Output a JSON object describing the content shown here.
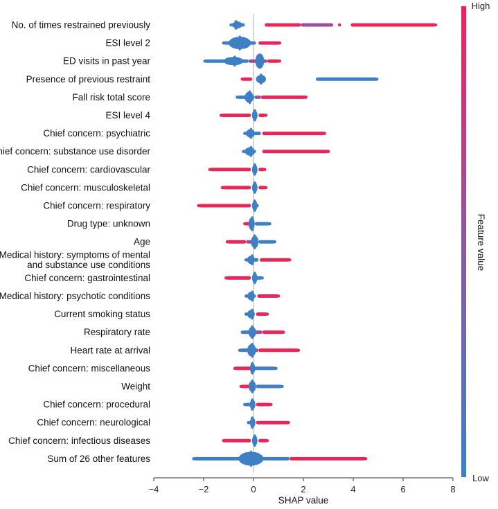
{
  "chart_data": {
    "type": "scatter",
    "subtype": "shap-beeswarm",
    "xlabel": "SHAP value",
    "xlim": [
      -4,
      8
    ],
    "xticks": [
      -4,
      -2,
      0,
      2,
      4,
      6,
      8
    ],
    "colorbar": {
      "label": "Feature value",
      "high_label": "High",
      "low_label": "Low",
      "low_color": "#3f7fc4",
      "high_color": "#e8265a"
    },
    "features": [
      {
        "name": "No. of times restrained previously",
        "lines": [
          "No. of times restrained previously"
        ],
        "min": -0.9,
        "max": 7.3,
        "center": -0.7,
        "core": [
          -0.85,
          -0.45
        ],
        "thick": 10,
        "low": [
          [
            -0.9,
            -0.35
          ]
        ],
        "high": [
          [
            0.45,
            1.9
          ],
          [
            3.9,
            7.3
          ]
        ],
        "mixed": [
          [
            1.9,
            3.2
          ]
        ],
        "dots": [
          {
            "x": 3.45,
            "c": "high"
          }
        ]
      },
      {
        "name": "ESI level 2",
        "lines": [
          "ESI level 2"
        ],
        "min": -1.2,
        "max": 1.05,
        "center": -0.55,
        "core": [
          -1.0,
          -0.1
        ],
        "thick": 18,
        "low": [
          [
            -1.2,
            0.1
          ]
        ],
        "high": [
          [
            0.2,
            1.05
          ]
        ],
        "mixed": []
      },
      {
        "name": "ED visits in past year",
        "lines": [
          "ED visits in past year"
        ],
        "min": -1.95,
        "max": 1.05,
        "center": -0.75,
        "core": [
          -1.2,
          -0.4
        ],
        "thick": 12,
        "low": [
          [
            -1.95,
            -0.2
          ]
        ],
        "high": [
          [
            0.55,
            1.05
          ]
        ],
        "mixed": [
          [
            -0.2,
            0.55
          ]
        ],
        "blob": {
          "x": 0.25,
          "w": 0.35,
          "h": 22
        }
      },
      {
        "name": "Presence of previous restraint",
        "lines": [
          "Presence of previous restraint"
        ],
        "min": -0.45,
        "max": 4.95,
        "center": 0.3,
        "core": [
          0.1,
          0.5
        ],
        "thick": 12,
        "low": [
          [
            0.1,
            0.5
          ],
          [
            2.5,
            4.95
          ]
        ],
        "high": [
          [
            -0.45,
            -0.05
          ]
        ],
        "mixed": []
      },
      {
        "name": "Fall risk total score",
        "lines": [
          "Fall risk total score"
        ],
        "min": -0.65,
        "max": 2.1,
        "center": -0.15,
        "core": [
          -0.35,
          0.0
        ],
        "thick": 16,
        "low": [
          [
            -0.65,
            0.05
          ]
        ],
        "high": [
          [
            0.3,
            2.1
          ]
        ],
        "mixed": [
          [
            0.05,
            0.3
          ]
        ]
      },
      {
        "name": "ESI level 4",
        "lines": [
          "ESI level 4"
        ],
        "min": -1.3,
        "max": 0.5,
        "center": 0.05,
        "core": [
          -0.05,
          0.15
        ],
        "thick": 14,
        "low": [
          [
            -0.05,
            0.15
          ]
        ],
        "high": [
          [
            -1.3,
            -0.1
          ],
          [
            0.2,
            0.5
          ]
        ],
        "mixed": []
      },
      {
        "name": "Chief concern: psychiatric",
        "lines": [
          "Chief concern: psychiatric"
        ],
        "min": -0.35,
        "max": 2.85,
        "center": -0.1,
        "core": [
          -0.3,
          0.05
        ],
        "thick": 12,
        "low": [
          [
            -0.35,
            0.3
          ]
        ],
        "high": [
          [
            0.35,
            2.85
          ]
        ],
        "mixed": []
      },
      {
        "name": "Chief concern: substance use disorder",
        "lines": [
          "Chief concern: substance use disorder"
        ],
        "min": -0.4,
        "max": 3.0,
        "center": -0.1,
        "core": [
          -0.35,
          0.05
        ],
        "thick": 12,
        "low": [
          [
            -0.4,
            0.1
          ]
        ],
        "high": [
          [
            0.35,
            3.0
          ]
        ],
        "mixed": []
      },
      {
        "name": "Chief concern: cardiovascular",
        "lines": [
          "Chief concern: cardiovascular"
        ],
        "min": -1.75,
        "max": 0.45,
        "center": 0.05,
        "core": [
          -0.02,
          0.12
        ],
        "thick": 14,
        "low": [
          [
            -0.02,
            0.12
          ]
        ],
        "high": [
          [
            -1.75,
            -0.1
          ],
          [
            0.2,
            0.45
          ]
        ],
        "mixed": []
      },
      {
        "name": "Chief concern: musculoskeletal",
        "lines": [
          "Chief concern: musculoskeletal"
        ],
        "min": -1.25,
        "max": 0.5,
        "center": 0.05,
        "core": [
          -0.02,
          0.12
        ],
        "thick": 14,
        "low": [
          [
            -0.02,
            0.12
          ]
        ],
        "high": [
          [
            -1.25,
            -0.1
          ],
          [
            0.2,
            0.5
          ]
        ],
        "mixed": []
      },
      {
        "name": "Chief concern: respiratory",
        "lines": [
          "Chief concern: respiratory"
        ],
        "min": -2.2,
        "max": 0.15,
        "center": 0.05,
        "core": [
          -0.02,
          0.12
        ],
        "thick": 14,
        "low": [
          [
            -0.02,
            0.15
          ]
        ],
        "high": [
          [
            -2.2,
            -0.1
          ]
        ],
        "mixed": []
      },
      {
        "name": "Drug type: unknown",
        "lines": [
          "Drug type: unknown"
        ],
        "min": -0.35,
        "max": 0.65,
        "center": -0.05,
        "core": [
          -0.2,
          0.05
        ],
        "thick": 18,
        "low": [
          [
            0.05,
            0.65
          ]
        ],
        "high": [
          [
            -0.35,
            0.05
          ]
        ],
        "mixed": []
      },
      {
        "name": "Age",
        "lines": [
          "Age"
        ],
        "min": -1.05,
        "max": 0.85,
        "center": 0.05,
        "core": [
          -0.1,
          0.2
        ],
        "thick": 18,
        "low": [
          [
            0.2,
            0.85
          ]
        ],
        "high": [
          [
            -1.05,
            -0.3
          ]
        ],
        "mixed": [
          [
            -0.3,
            0.2
          ]
        ]
      },
      {
        "name": "Medical history: symptoms of mental and substance use conditions",
        "lines": [
          "Medical history: symptoms of mental",
          "and substance use conditions"
        ],
        "min": -0.3,
        "max": 1.45,
        "center": -0.05,
        "core": [
          -0.25,
          0.05
        ],
        "thick": 12,
        "low": [
          [
            -0.3,
            0.2
          ]
        ],
        "high": [
          [
            0.25,
            1.45
          ]
        ],
        "mixed": []
      },
      {
        "name": "Chief concern: gastrointestinal",
        "lines": [
          "Chief concern: gastrointestinal"
        ],
        "min": -1.1,
        "max": 0.35,
        "center": 0.05,
        "core": [
          -0.02,
          0.12
        ],
        "thick": 14,
        "low": [
          [
            -0.02,
            0.35
          ]
        ],
        "high": [
          [
            -1.1,
            -0.1
          ]
        ],
        "mixed": []
      },
      {
        "name": "Medical history: psychotic conditions",
        "lines": [
          "Medical history: psychotic conditions"
        ],
        "min": -0.3,
        "max": 1.0,
        "center": -0.05,
        "core": [
          -0.25,
          0.05
        ],
        "thick": 12,
        "low": [
          [
            -0.3,
            0.1
          ]
        ],
        "high": [
          [
            0.15,
            1.0
          ]
        ],
        "mixed": []
      },
      {
        "name": "Current smoking status",
        "lines": [
          "Current smoking status"
        ],
        "min": -0.3,
        "max": 0.55,
        "center": -0.05,
        "core": [
          -0.25,
          0.05
        ],
        "thick": 12,
        "low": [
          [
            -0.3,
            0.05
          ]
        ],
        "high": [
          [
            0.1,
            0.55
          ]
        ],
        "mixed": []
      },
      {
        "name": "Respiratory rate",
        "lines": [
          "Respiratory rate"
        ],
        "min": -0.45,
        "max": 1.2,
        "center": -0.05,
        "core": [
          -0.2,
          0.1
        ],
        "thick": 16,
        "low": [
          [
            -0.45,
            -0.05
          ]
        ],
        "high": [
          [
            0.35,
            1.2
          ]
        ],
        "mixed": [
          [
            -0.05,
            0.35
          ]
        ]
      },
      {
        "name": "Heart rate at arrival",
        "lines": [
          "Heart rate at arrival"
        ],
        "min": -0.55,
        "max": 1.8,
        "center": -0.05,
        "core": [
          -0.25,
          0.1
        ],
        "thick": 18,
        "low": [
          [
            -0.55,
            -0.1
          ]
        ],
        "high": [
          [
            0.2,
            1.8
          ]
        ],
        "mixed": [
          [
            -0.1,
            0.2
          ]
        ]
      },
      {
        "name": "Chief concern: miscellaneous",
        "lines": [
          "Chief concern: miscellaneous"
        ],
        "min": -0.75,
        "max": 0.9,
        "center": -0.05,
        "core": [
          -0.12,
          0.05
        ],
        "thick": 14,
        "low": [
          [
            0.0,
            0.9
          ]
        ],
        "high": [
          [
            -0.75,
            -0.05
          ]
        ],
        "mixed": []
      },
      {
        "name": "Weight",
        "lines": [
          "Weight"
        ],
        "min": -0.5,
        "max": 1.15,
        "center": -0.05,
        "core": [
          -0.2,
          0.1
        ],
        "thick": 16,
        "low": [
          [
            0.1,
            1.15
          ]
        ],
        "high": [
          [
            -0.5,
            -0.15
          ]
        ],
        "mixed": [
          [
            -0.15,
            0.1
          ]
        ]
      },
      {
        "name": "Chief concern: procedural",
        "lines": [
          "Chief concern: procedural"
        ],
        "min": -0.35,
        "max": 0.7,
        "center": -0.05,
        "core": [
          -0.12,
          0.05
        ],
        "thick": 14,
        "low": [
          [
            -0.35,
            0.05
          ]
        ],
        "high": [
          [
            0.1,
            0.7
          ]
        ],
        "mixed": []
      },
      {
        "name": "Chief concern: neurological",
        "lines": [
          "Chief concern: neurological"
        ],
        "min": -0.2,
        "max": 1.4,
        "center": -0.05,
        "core": [
          -0.12,
          0.05
        ],
        "thick": 14,
        "low": [
          [
            -0.2,
            0.05
          ]
        ],
        "high": [
          [
            0.1,
            1.4
          ]
        ],
        "mixed": []
      },
      {
        "name": "Chief concern: infectious diseases",
        "lines": [
          "Chief concern: infectious diseases"
        ],
        "min": -1.2,
        "max": 0.55,
        "center": 0.05,
        "core": [
          -0.02,
          0.12
        ],
        "thick": 14,
        "low": [
          [
            -0.02,
            0.12
          ]
        ],
        "high": [
          [
            -1.2,
            -0.1
          ],
          [
            0.2,
            0.55
          ]
        ],
        "mixed": []
      },
      {
        "name": "Sum of 26 other features",
        "lines": [
          "Sum of 26 other features"
        ],
        "min": -2.4,
        "max": 4.5,
        "center": -0.1,
        "core": [
          -0.6,
          0.4
        ],
        "thick": 20,
        "low": [
          [
            -2.4,
            1.45
          ]
        ],
        "high": [
          [
            1.45,
            4.5
          ]
        ],
        "mixed": []
      }
    ]
  }
}
